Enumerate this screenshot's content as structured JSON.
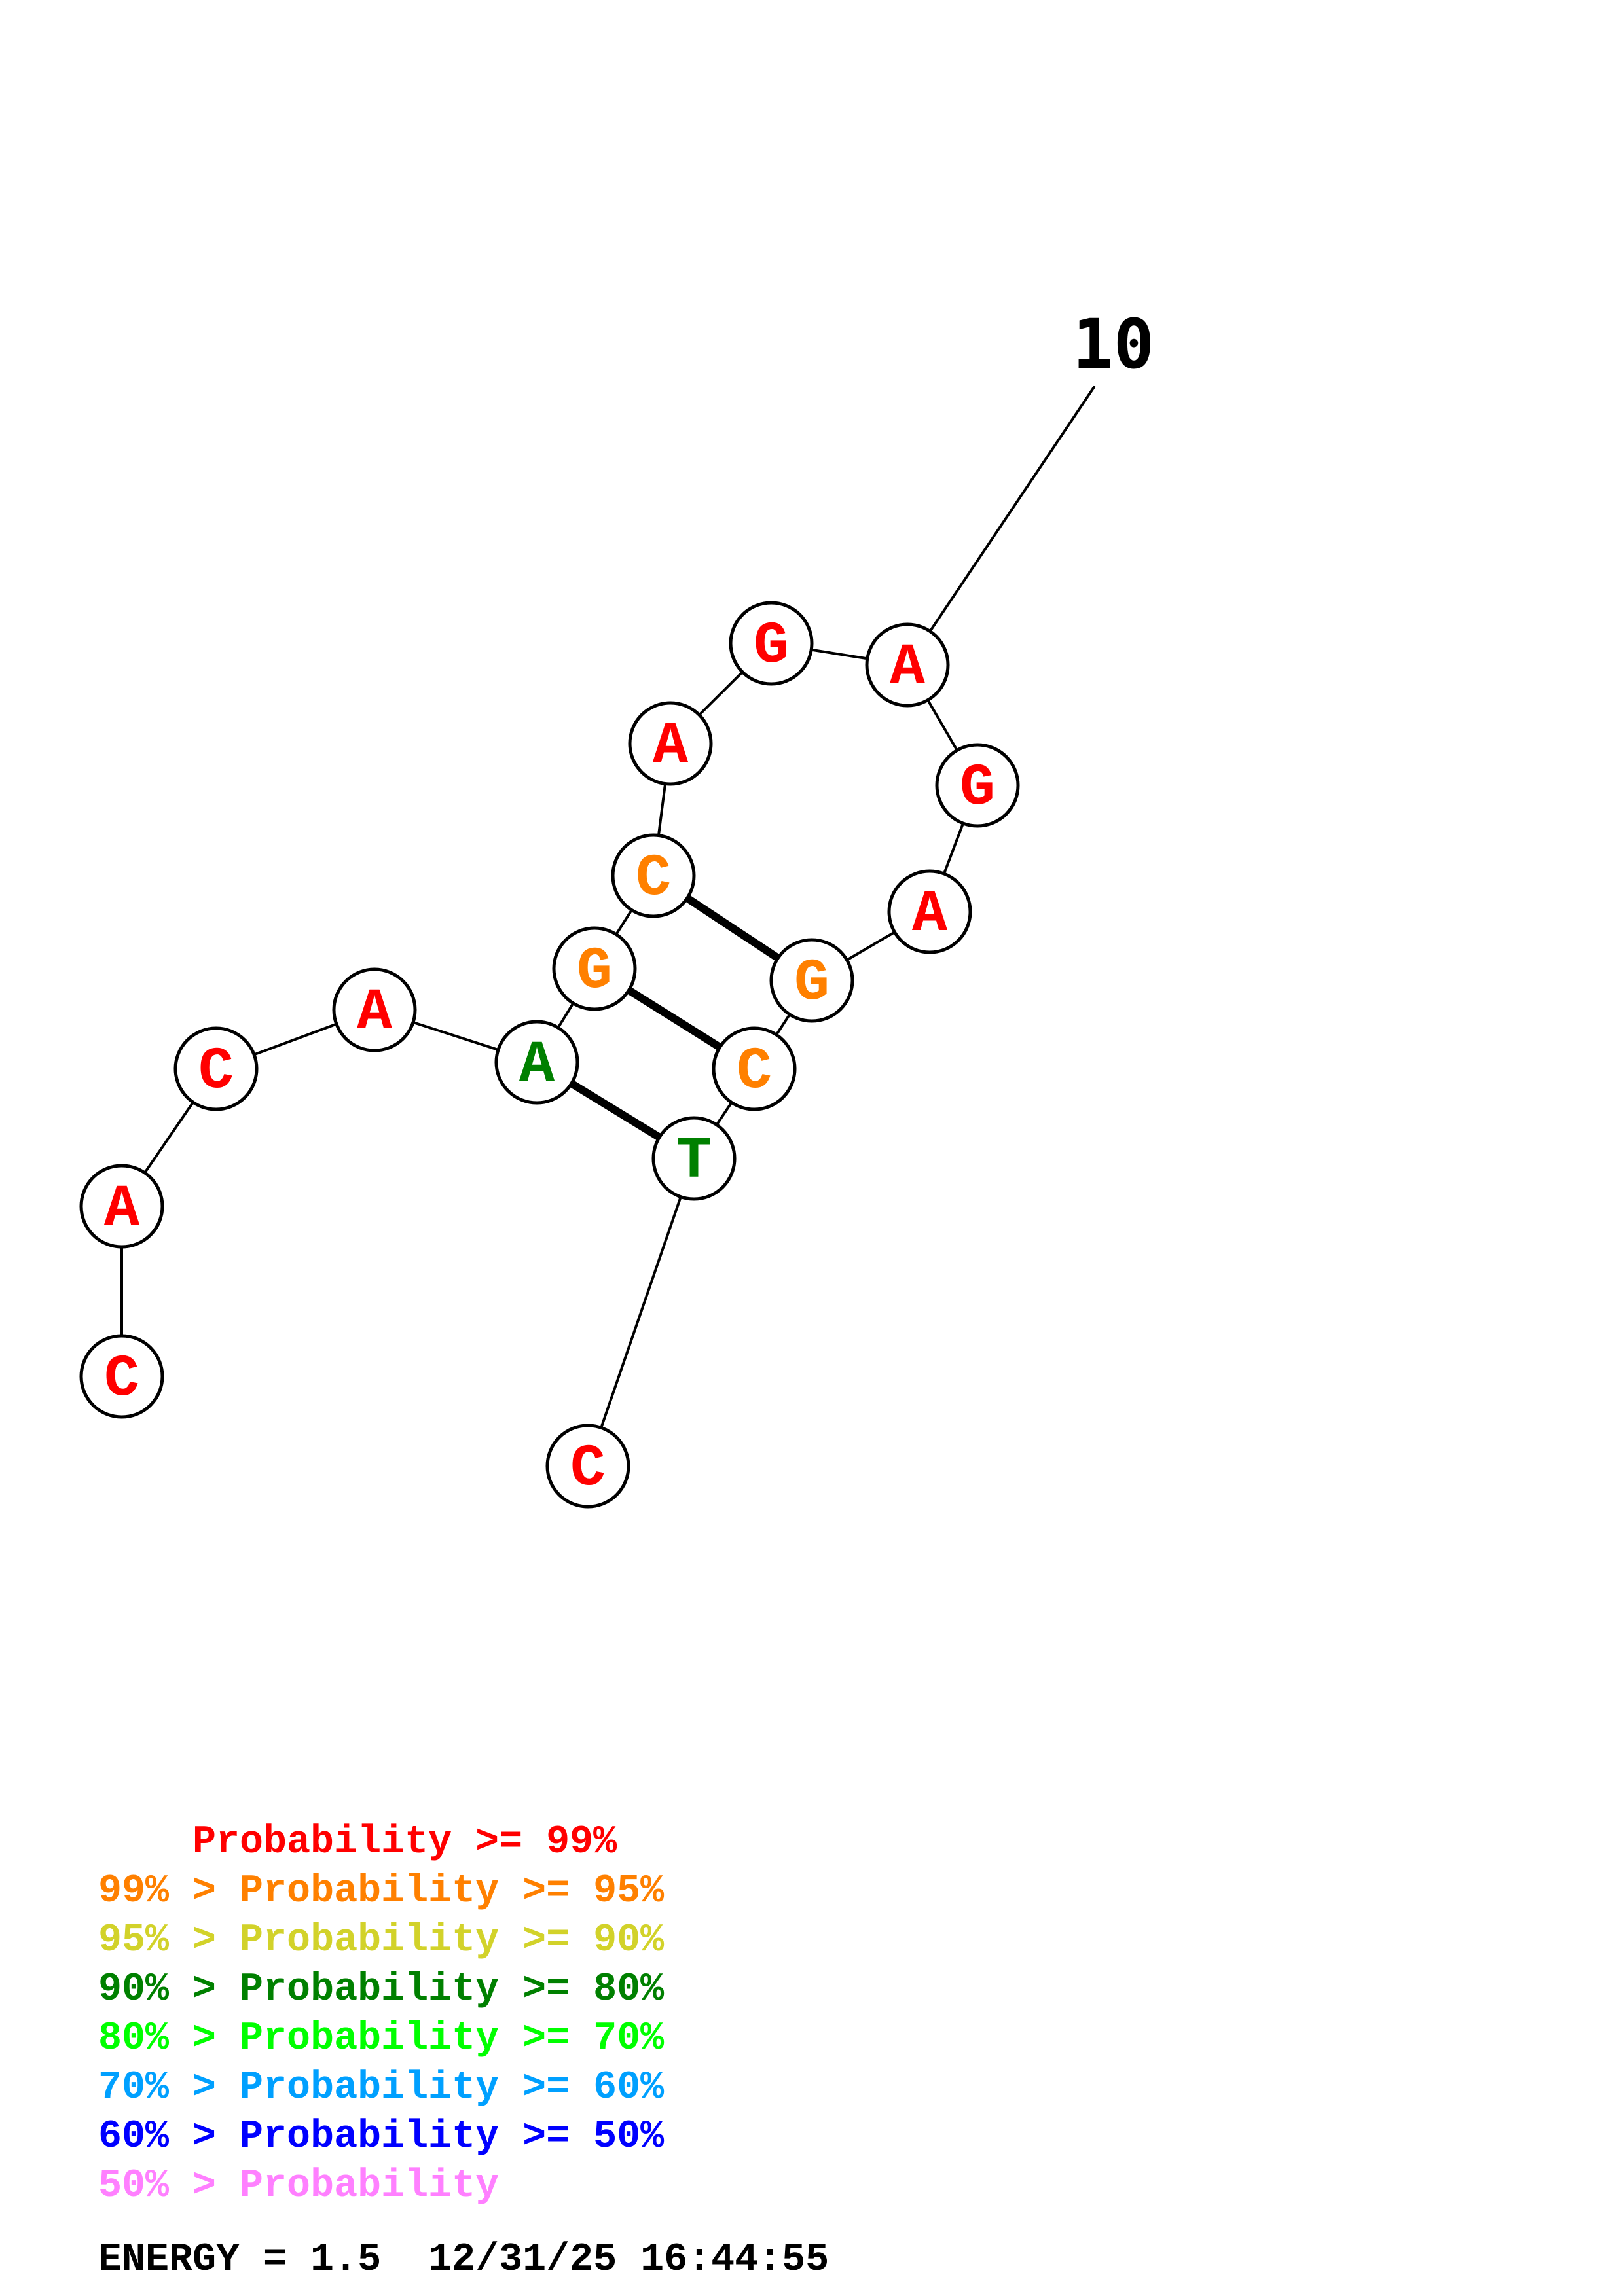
{
  "colors": {
    "p99": "#ff0000",
    "p95": "#ff8000",
    "p90": "#d2d22a",
    "p80": "#008000",
    "p70": "#00ff00",
    "p60": "#00a0ff",
    "p50": "#0000ff",
    "plow": "#ff80ff",
    "line": "#000000",
    "node_fill": "#ffffff"
  },
  "structure": {
    "nucleotides": [
      {
        "index": 1,
        "base": "C",
        "prob_class": "p99"
      },
      {
        "index": 2,
        "base": "A",
        "prob_class": "p99"
      },
      {
        "index": 3,
        "base": "C",
        "prob_class": "p99"
      },
      {
        "index": 4,
        "base": "A",
        "prob_class": "p99"
      },
      {
        "index": 5,
        "base": "A",
        "prob_class": "p80"
      },
      {
        "index": 6,
        "base": "G",
        "prob_class": "p95"
      },
      {
        "index": 7,
        "base": "C",
        "prob_class": "p95"
      },
      {
        "index": 8,
        "base": "A",
        "prob_class": "p99"
      },
      {
        "index": 9,
        "base": "G",
        "prob_class": "p99"
      },
      {
        "index": 10,
        "base": "A",
        "prob_class": "p99"
      },
      {
        "index": 11,
        "base": "G",
        "prob_class": "p99"
      },
      {
        "index": 12,
        "base": "A",
        "prob_class": "p99"
      },
      {
        "index": 13,
        "base": "G",
        "prob_class": "p95"
      },
      {
        "index": 14,
        "base": "C",
        "prob_class": "p95"
      },
      {
        "index": 15,
        "base": "T",
        "prob_class": "p80"
      },
      {
        "index": 16,
        "base": "C",
        "prob_class": "p99"
      }
    ],
    "pairs": [
      [
        5,
        15
      ],
      [
        6,
        14
      ],
      [
        7,
        13
      ]
    ],
    "markers": [
      {
        "index": 10,
        "label": "10"
      }
    ]
  },
  "legend": [
    {
      "prefix": "    ",
      "text": "Probability >= 99%",
      "color_key": "p99"
    },
    {
      "prefix": "99% > ",
      "text": "Probability >= 95%",
      "color_key": "p95"
    },
    {
      "prefix": "95% > ",
      "text": "Probability >= 90%",
      "color_key": "p90"
    },
    {
      "prefix": "90% > ",
      "text": "Probability >= 80%",
      "color_key": "p80"
    },
    {
      "prefix": "80% > ",
      "text": "Probability >= 70%",
      "color_key": "p70"
    },
    {
      "prefix": "70% > ",
      "text": "Probability >= 60%",
      "color_key": "p60"
    },
    {
      "prefix": "60% > ",
      "text": "Probability >= 50%",
      "color_key": "p50"
    },
    {
      "prefix": "50% > ",
      "text": "Probability",
      "color_key": "plow"
    }
  ],
  "footer": {
    "energy_text": "ENERGY = 1.5  12/31/25 16:44:55"
  }
}
